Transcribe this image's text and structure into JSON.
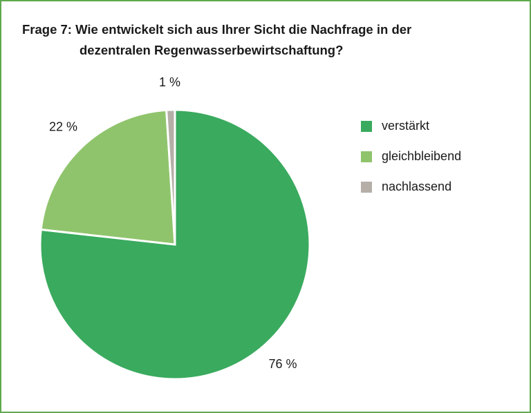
{
  "chart_data": {
    "type": "pie",
    "title": [
      "Frage 7: Wie entwickelt sich aus Ihrer Sicht die Nachfrage in der",
      "dezentralen Regenwasserbewirtschaftung?"
    ],
    "categories": [
      "verstärkt",
      "gleichbleibend",
      "nachlassend"
    ],
    "values": [
      76,
      22,
      1
    ],
    "value_labels": [
      "76 %",
      "22 %",
      "1 %"
    ],
    "colors": [
      "#3aaa5e",
      "#8fc46c",
      "#b5afa8"
    ],
    "legend": "right"
  }
}
